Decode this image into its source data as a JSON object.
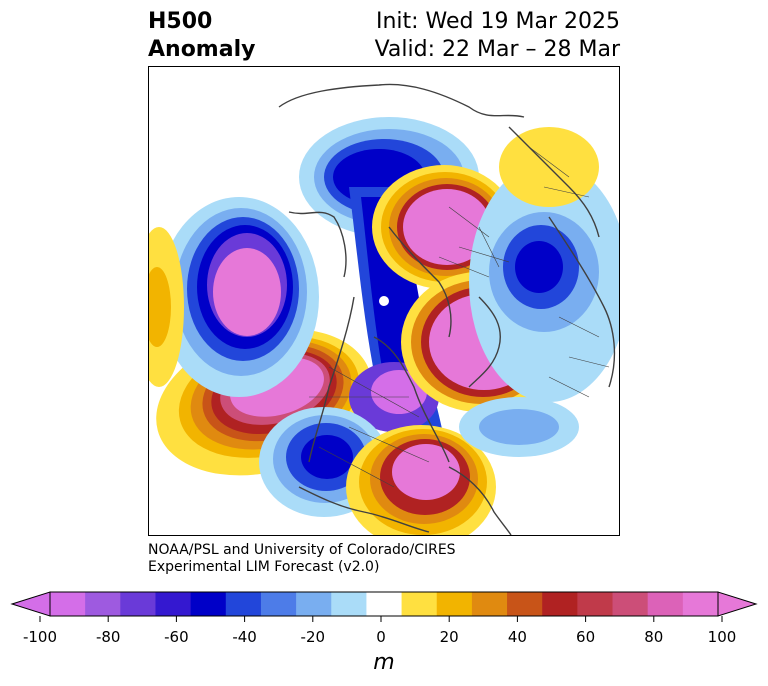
{
  "title": {
    "left_line1": "H500",
    "left_line2": "Anomaly",
    "right_line1": "Init: Wed 19 Mar 2025",
    "right_line2": "Valid: 22 Mar – 28 Mar"
  },
  "credit": {
    "line1": "NOAA/PSL and University of Colorado/CIRES",
    "line2": "Experimental LIM Forecast (v2.0)"
  },
  "colorbar": {
    "unit": "m",
    "ticks": [
      "-100",
      "-80",
      "-60",
      "-40",
      "-20",
      "0",
      "20",
      "40",
      "60",
      "80",
      "100"
    ],
    "colors": [
      "#d46ee8",
      "#9e5ae0",
      "#6a3ad8",
      "#3418d0",
      "#0000c8",
      "#2246da",
      "#4d7ce8",
      "#79aef0",
      "#aadcf8",
      "#ffffff",
      "#ffe040",
      "#f2b400",
      "#e08a10",
      "#c85418",
      "#b02222",
      "#c03a4a",
      "#cc4e78",
      "#dc62b8",
      "#e678d8"
    ]
  }
}
